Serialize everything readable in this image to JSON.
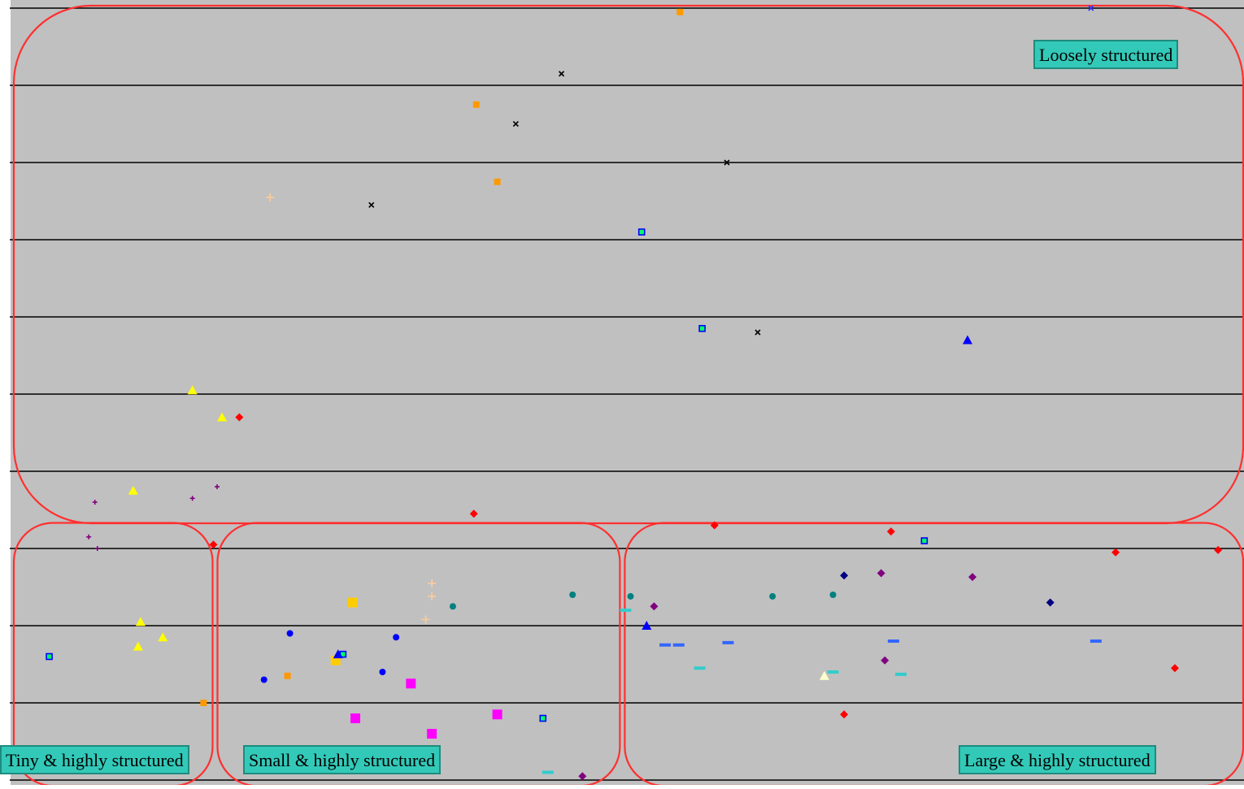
{
  "annotations": {
    "loose": "Loosely structured",
    "tiny": "Tiny & highly structured",
    "small": "Small & highly structured",
    "large": "Large & highly structured"
  },
  "chart_data": {
    "type": "scatter",
    "title": "",
    "xlabel": "",
    "ylabel": "",
    "xlim": [
      0,
      100
    ],
    "ylim": [
      0,
      100
    ],
    "grid": true,
    "grid_levels": [
      0,
      10,
      20,
      30,
      40,
      50,
      60,
      70,
      80,
      90,
      100
    ],
    "background": "#c0c0c0",
    "gridline_color": "#000000",
    "region_outline_color": "#ff3030",
    "regions": [
      {
        "name": "Loosely structured",
        "x_range": [
          0,
          100
        ],
        "y_range": [
          34,
          100
        ]
      },
      {
        "name": "Tiny & highly structured",
        "x_range": [
          0,
          16.5
        ],
        "y_range": [
          0,
          33
        ]
      },
      {
        "name": "Small & highly structured",
        "x_range": [
          16.5,
          49.5
        ],
        "y_range": [
          0,
          33
        ]
      },
      {
        "name": "Large & highly structured",
        "x_range": [
          49.5,
          100
        ],
        "y_range": [
          0,
          33
        ]
      }
    ],
    "series": [
      {
        "marker": "cross",
        "color": "#000000",
        "points": [
          [
            44.7,
            91.5
          ],
          [
            41.0,
            85.0
          ],
          [
            58.1,
            80.0
          ],
          [
            29.3,
            74.5
          ],
          [
            60.6,
            58.0
          ]
        ]
      },
      {
        "marker": "square",
        "color": "#ff9900",
        "points": [
          [
            54.3,
            99.5
          ],
          [
            37.8,
            87.5
          ],
          [
            39.5,
            77.5
          ],
          [
            22.5,
            13.5
          ],
          [
            15.7,
            10.0
          ]
        ]
      },
      {
        "marker": "hollow-square",
        "color": "#0000ff",
        "points": [
          [
            51.2,
            71.0
          ],
          [
            56.1,
            58.5
          ],
          [
            74.1,
            31.0
          ],
          [
            3.2,
            16.0
          ],
          [
            27.0,
            16.3
          ],
          [
            43.2,
            8.0
          ]
        ]
      },
      {
        "marker": "plus",
        "color": "#ffcc99",
        "points": [
          [
            21.1,
            75.5
          ],
          [
            34.2,
            25.5
          ],
          [
            34.2,
            23.8
          ],
          [
            33.7,
            20.8
          ]
        ]
      },
      {
        "marker": "triangle",
        "color": "#ffff00",
        "points": [
          [
            14.8,
            50.5
          ],
          [
            17.2,
            47.0
          ],
          [
            10.0,
            37.5
          ],
          [
            10.6,
            20.5
          ],
          [
            12.4,
            18.5
          ],
          [
            10.4,
            17.3
          ]
        ]
      },
      {
        "marker": "diamond",
        "color": "#ff0000",
        "points": [
          [
            18.6,
            47.0
          ],
          [
            37.6,
            34.5
          ],
          [
            57.1,
            33.0
          ],
          [
            71.4,
            32.2
          ],
          [
            16.5,
            30.5
          ],
          [
            89.6,
            29.5
          ],
          [
            97.9,
            29.8
          ],
          [
            94.4,
            14.5
          ],
          [
            67.6,
            8.5
          ]
        ]
      },
      {
        "marker": "small-plus",
        "color": "#800080",
        "points": [
          [
            6.9,
            36.0
          ],
          [
            14.8,
            36.5
          ],
          [
            16.8,
            38.0
          ],
          [
            6.4,
            31.5
          ],
          [
            7.1,
            30.0
          ]
        ]
      },
      {
        "marker": "circle",
        "color": "#0000ff",
        "points": [
          [
            22.7,
            19.0
          ],
          [
            31.3,
            18.5
          ],
          [
            30.2,
            14.0
          ],
          [
            20.6,
            13.0
          ]
        ]
      },
      {
        "marker": "filled-square",
        "color": "#ffcc00",
        "points": [
          [
            27.8,
            23.0
          ],
          [
            26.4,
            15.5
          ]
        ]
      },
      {
        "marker": "filled-square",
        "color": "#ff00ff",
        "points": [
          [
            32.5,
            12.5
          ],
          [
            28.0,
            8.0
          ],
          [
            39.5,
            8.5
          ],
          [
            34.2,
            6.0
          ]
        ]
      },
      {
        "marker": "circle",
        "color": "#008080",
        "points": [
          [
            35.9,
            22.5
          ],
          [
            45.6,
            24.0
          ],
          [
            50.3,
            23.8
          ],
          [
            61.8,
            23.8
          ],
          [
            66.7,
            24.0
          ]
        ]
      },
      {
        "marker": "diamond",
        "color": "#000080",
        "points": [
          [
            67.6,
            26.5
          ],
          [
            84.3,
            23.0
          ]
        ]
      },
      {
        "marker": "diamond",
        "color": "#800080",
        "points": [
          [
            70.6,
            26.8
          ],
          [
            78.0,
            26.3
          ],
          [
            52.2,
            22.5
          ],
          [
            70.9,
            15.5
          ],
          [
            46.4,
            0.5
          ]
        ]
      },
      {
        "marker": "triangle",
        "color": "#0000ff",
        "points": [
          [
            77.6,
            57.0
          ],
          [
            51.6,
            20.0
          ],
          [
            26.6,
            16.3
          ]
        ]
      },
      {
        "marker": "dash",
        "color": "#33cccc",
        "points": [
          [
            49.9,
            22.0
          ],
          [
            55.9,
            14.5
          ],
          [
            66.7,
            14.0
          ],
          [
            72.2,
            13.7
          ],
          [
            43.6,
            1.0
          ]
        ]
      },
      {
        "marker": "dash",
        "color": "#3366ff",
        "points": [
          [
            53.1,
            17.5
          ],
          [
            54.2,
            17.5
          ],
          [
            58.2,
            17.8
          ],
          [
            71.6,
            18.0
          ],
          [
            88.0,
            18.0
          ]
        ]
      },
      {
        "marker": "triangle",
        "color": "#ffffcc",
        "points": [
          [
            66.0,
            13.5
          ]
        ]
      },
      {
        "marker": "cross",
        "color": "#3333ff",
        "points": [
          [
            87.6,
            100.0
          ]
        ]
      }
    ]
  }
}
